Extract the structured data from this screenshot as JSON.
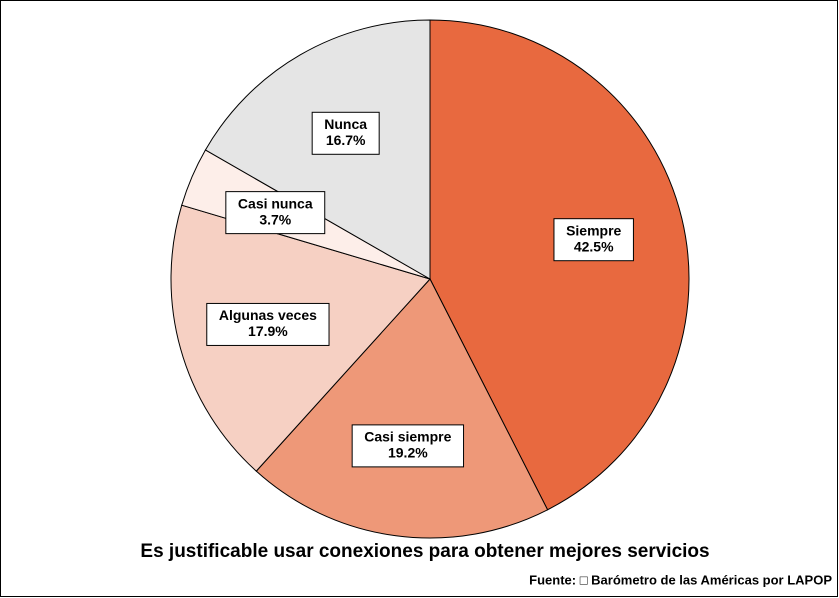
{
  "chart_data": {
    "type": "pie",
    "title": "Es justificable usar conexiones para obtener mejores servicios",
    "source": "Fuente: □ Barómetro de las Américas por LAPOP",
    "categories": [
      "Siempre",
      "Casi siempre",
      "Algunas veces",
      "Casi nunca",
      "Nunca"
    ],
    "values": [
      42.5,
      19.2,
      17.9,
      3.7,
      16.7
    ],
    "value_labels": [
      "42.5%",
      "19.2%",
      "17.9%",
      "3.7%",
      "16.7%"
    ],
    "colors": [
      "#e8693f",
      "#ee9878",
      "#f6d0c3",
      "#fdeee9",
      "#e5e5e5"
    ]
  }
}
